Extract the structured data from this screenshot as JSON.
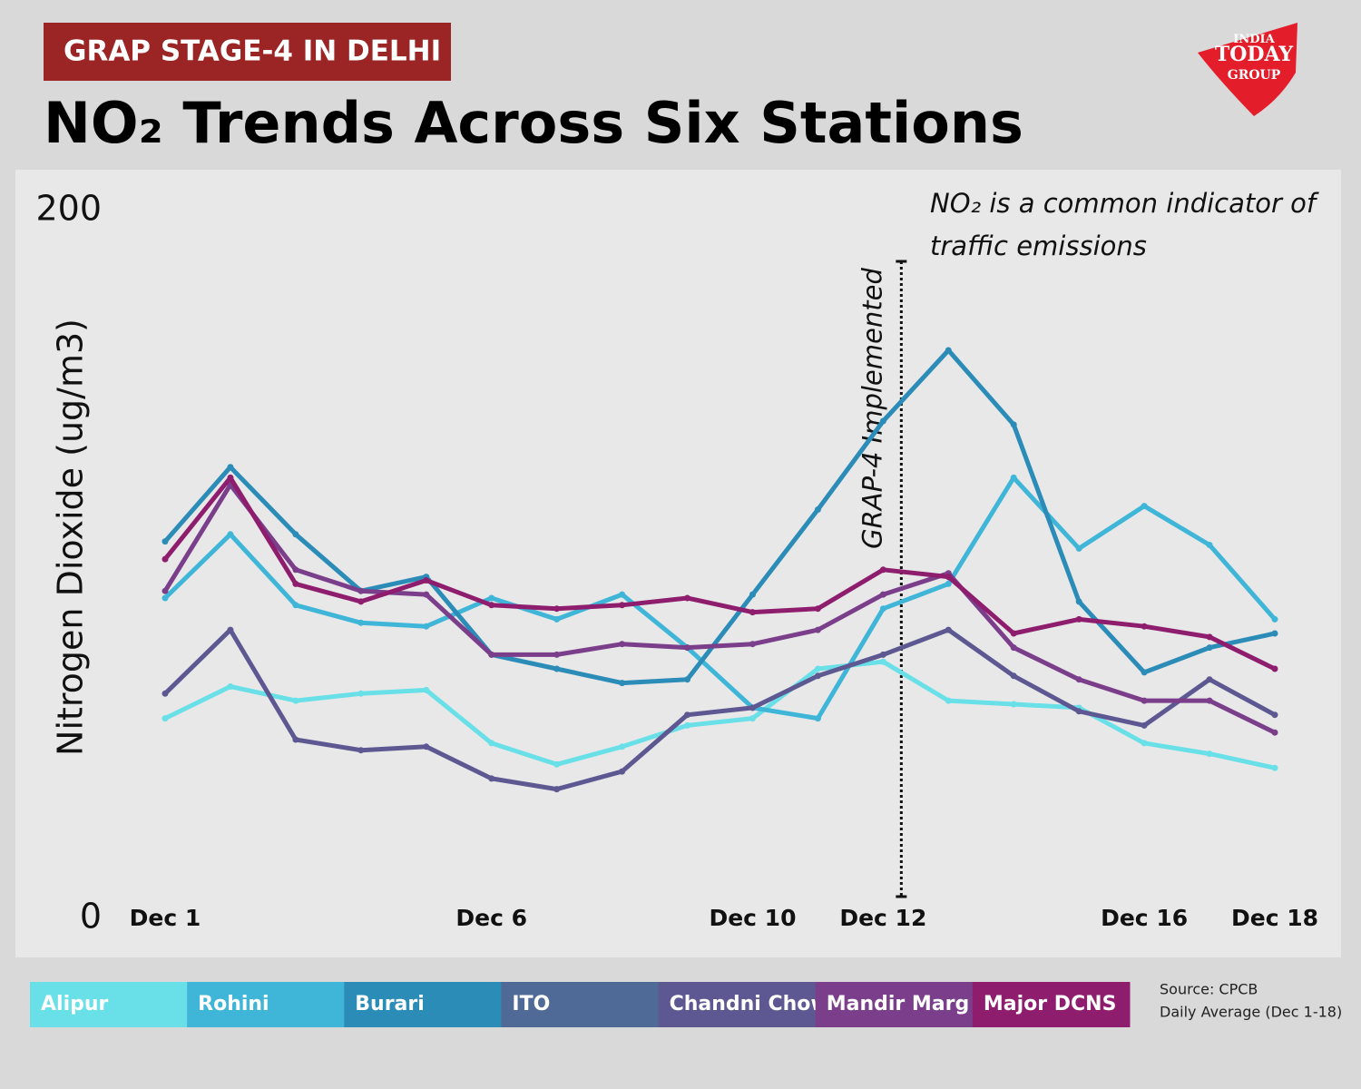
{
  "badge": "GRAP STAGE-4 IN DELHI",
  "logo": {
    "line1": "INDIA",
    "line2": "TODAY",
    "line3": "GROUP"
  },
  "source": {
    "line1": "Source: CPCB",
    "line2": "Daily Average (Dec 1-18)"
  },
  "chart_data": {
    "type": "line",
    "title": "NO₂ Trends Across Six Stations",
    "y_label": "Nitrogen Dioxide (ug/m3)",
    "note": {
      "line1": "NO₂ is a common indicator of",
      "line2": "traffic emissions"
    },
    "annotation": {
      "text": "GRAP-4 Implemented",
      "category": "Dec 12"
    },
    "categories": [
      "Dec 1",
      null,
      null,
      null,
      null,
      "Dec 6",
      null,
      null,
      null,
      "Dec 10",
      null,
      "Dec 12",
      null,
      null,
      null,
      "Dec 16",
      null,
      "Dec 18"
    ],
    "ylim": [
      0,
      200
    ],
    "yticks": [
      0,
      200
    ],
    "grid": false,
    "series": [
      {
        "name": "Alipur",
        "color": "#69e0e8",
        "values": [
          56,
          65,
          61,
          63,
          64,
          49,
          43,
          48,
          54,
          56,
          70,
          72,
          61,
          60,
          59,
          49,
          46,
          42
        ]
      },
      {
        "name": "Rohini",
        "color": "#3fb6d8",
        "values": [
          90,
          108,
          88,
          83,
          82,
          90,
          84,
          91,
          76,
          59,
          56,
          87,
          94,
          124,
          104,
          116,
          105,
          84
        ]
      },
      {
        "name": "Burari",
        "color": "#2b8cb8",
        "values": [
          106,
          127,
          108,
          92,
          96,
          74,
          70,
          66,
          67,
          91,
          115,
          140,
          160,
          139,
          89,
          69,
          76,
          80
        ]
      },
      {
        "name": "ITO",
        "color": "#4f6a96",
        "values": [
          null,
          null,
          null,
          null,
          null,
          null,
          null,
          null,
          null,
          null,
          null,
          null,
          null,
          null,
          null,
          null,
          null,
          null
        ]
      },
      {
        "name": "Chandni Chowk",
        "color": "#5d5892",
        "values": [
          63,
          81,
          50,
          47,
          48,
          39,
          36,
          41,
          57,
          59,
          68,
          74,
          81,
          68,
          58,
          54,
          67,
          57
        ]
      },
      {
        "name": "Mandir Marg",
        "color": "#7b3e8b",
        "values": [
          92,
          122,
          98,
          92,
          91,
          74,
          74,
          77,
          76,
          77,
          81,
          91,
          97,
          76,
          67,
          61,
          61,
          52
        ]
      },
      {
        "name": "Major DCNS",
        "color": "#8e1d6e",
        "values": [
          101,
          124,
          94,
          89,
          95,
          88,
          87,
          88,
          90,
          86,
          87,
          98,
          96,
          80,
          84,
          82,
          79,
          70
        ]
      }
    ]
  }
}
